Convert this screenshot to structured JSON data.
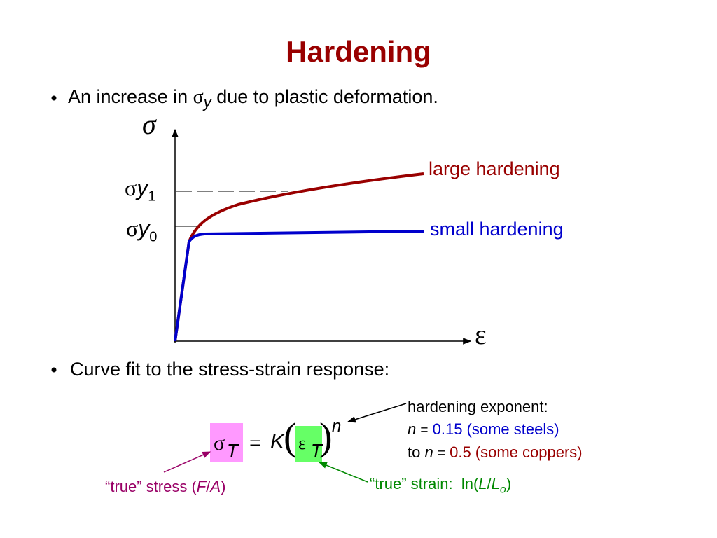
{
  "title": "Hardening",
  "bullets": [
    {
      "parts": [
        "An increase in",
        "σ",
        "y",
        "due to plastic deformation."
      ]
    },
    {
      "text": "Curve fit to the stress-strain response:"
    }
  ],
  "diagram": {
    "y_axis": "σ",
    "x_axis": "ε",
    "sigma_y1": {
      "symbol": "σ",
      "sub": "y",
      "index": "1"
    },
    "sigma_y0": {
      "symbol": "σ",
      "sub": "y",
      "index": "0"
    },
    "curves": [
      {
        "label": "large hardening"
      },
      {
        "label": "small hardening"
      }
    ]
  },
  "equation": {
    "lhs": "σ",
    "lhs_sub": "T",
    "equals": "=",
    "k": "K",
    "open": "(",
    "strain": "ε",
    "strain_sub": "T",
    "close": ")",
    "exp": "n"
  },
  "notes": {
    "exponent": {
      "heading": "hardening exponent:",
      "line1": [
        "n",
        "=",
        "0.15 (some steels)"
      ],
      "line2": [
        "to",
        "n",
        "=",
        "0.5 (some coppers)"
      ]
    },
    "stress": [
      "“true” stress (",
      "F",
      "/",
      "A",
      ")"
    ],
    "strain": [
      "“true” strain:",
      "ln(",
      "L",
      "/",
      "L",
      "o",
      ")"
    ]
  }
}
